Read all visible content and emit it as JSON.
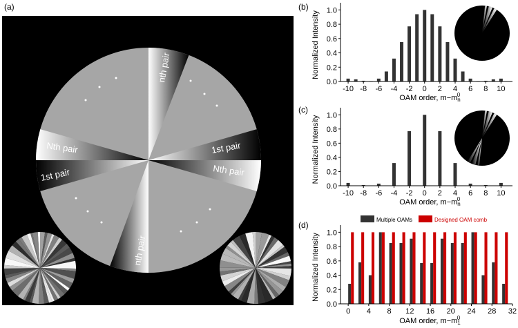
{
  "panel_labels": {
    "a": "(a)",
    "b": "(b)",
    "c": "(c)",
    "d": "(d)"
  },
  "panel_a": {
    "sector_labels": {
      "top": "nth pair",
      "right_upper": "1st pair",
      "right_lower": "Nth pair",
      "left_upper": "Nth pair",
      "left_lower": "1st pair",
      "bottom": "nth pair"
    },
    "colors": {
      "background": "#000000",
      "disk": "#a6a6a6"
    }
  },
  "chart_data": [
    {
      "id": "b",
      "type": "bar",
      "xlabel": "OAM order, m−m",
      "xlabel_sup": "0",
      "xlabel_sub": "n",
      "ylabel": "Normalized Intensity",
      "xlim": [
        -11,
        11.5
      ],
      "ylim": [
        0,
        1.1
      ],
      "xticks": [
        -10,
        -8,
        -6,
        -4,
        -2,
        0,
        2,
        4,
        6,
        8,
        10
      ],
      "yticks": [
        0.0,
        0.2,
        0.4,
        0.6,
        0.8,
        1.0
      ],
      "ytick_labels": [
        "0.0",
        "0.2",
        "0.4",
        "0.6",
        "0.8",
        "1.0"
      ],
      "series": [
        {
          "color": "#333333",
          "x": [
            -10,
            -9,
            -8,
            -7,
            -6,
            -5,
            -4,
            -3,
            -2,
            -1,
            0,
            1,
            2,
            3,
            4,
            5,
            6,
            7,
            8,
            9,
            10
          ],
          "values": [
            0.04,
            0.03,
            0.01,
            0.0,
            0.04,
            0.14,
            0.32,
            0.55,
            0.77,
            0.94,
            1.0,
            0.94,
            0.77,
            0.55,
            0.32,
            0.14,
            0.04,
            0.0,
            0.01,
            0.03,
            0.04
          ]
        }
      ],
      "inset": "phase-pattern-pie"
    },
    {
      "id": "c",
      "type": "bar",
      "xlabel": "OAM order, m−m",
      "xlabel_sup": "0",
      "xlabel_sub": "n",
      "ylabel": "Normalized Intensity",
      "xlim": [
        -11,
        11.5
      ],
      "ylim": [
        0,
        1.1
      ],
      "xticks": [
        -10,
        -8,
        -6,
        -4,
        -2,
        0,
        2,
        4,
        6,
        8,
        10
      ],
      "yticks": [
        0.0,
        0.2,
        0.4,
        0.6,
        0.8,
        1.0
      ],
      "ytick_labels": [
        "0.0",
        "0.2",
        "0.4",
        "0.6",
        "0.8",
        "1.0"
      ],
      "series": [
        {
          "color": "#333333",
          "x": [
            -10,
            -8,
            -6,
            -4,
            -2,
            0,
            2,
            4,
            6,
            8,
            10
          ],
          "values": [
            0.04,
            0.01,
            0.03,
            0.32,
            0.77,
            1.0,
            0.77,
            0.32,
            0.03,
            0.01,
            0.04
          ]
        }
      ],
      "inset": "phase-pattern-pie"
    },
    {
      "id": "d",
      "type": "bar",
      "xlabel": "OAM order, m−m",
      "xlabel_sup": "0",
      "xlabel_sub": "1",
      "ylabel": "Normalized Intensity",
      "xlim": [
        -1.5,
        32
      ],
      "ylim": [
        0,
        1.1
      ],
      "xticks": [
        0,
        4,
        8,
        12,
        16,
        20,
        24,
        28,
        32
      ],
      "yticks": [
        0.0,
        0.2,
        0.4,
        0.6,
        0.8,
        1.0
      ],
      "ytick_labels": [
        "0.0",
        "0.2",
        "0.4",
        "0.6",
        "0.8",
        "1.0"
      ],
      "legend": "top",
      "series": [
        {
          "name": "Multiple OAMs",
          "color": "#333333",
          "x": [
            0,
            2,
            4,
            6,
            8,
            10,
            12,
            14,
            16,
            18,
            20,
            22,
            24,
            26,
            28,
            30
          ],
          "values": [
            0.28,
            0.58,
            0.4,
            1.0,
            0.85,
            0.85,
            0.91,
            0.57,
            0.57,
            0.91,
            0.85,
            0.85,
            1.0,
            0.4,
            0.58,
            0.28
          ]
        },
        {
          "name": "Designed OAM comb",
          "color": "#cc0000",
          "x": [
            0,
            2,
            4,
            6,
            8,
            10,
            12,
            14,
            16,
            18,
            20,
            22,
            24,
            26,
            28,
            30
          ],
          "values": [
            1,
            1,
            1,
            1,
            1,
            1,
            1,
            1,
            1,
            1,
            1,
            1,
            1,
            1,
            1,
            1
          ]
        }
      ]
    }
  ]
}
